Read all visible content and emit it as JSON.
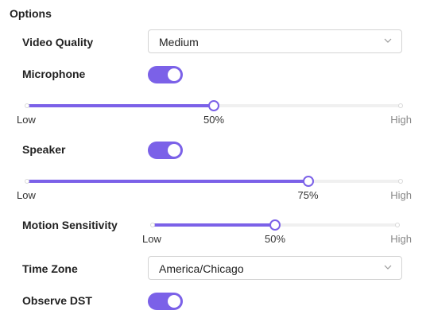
{
  "section": {
    "title": "Options"
  },
  "video_quality": {
    "label": "Video Quality",
    "value": "Medium"
  },
  "microphone": {
    "label": "Microphone",
    "enabled": true,
    "slider": {
      "value": 50,
      "min_label": "Low",
      "max_label": "High",
      "value_label": "50%"
    }
  },
  "speaker": {
    "label": "Speaker",
    "enabled": true,
    "slider": {
      "value": 75,
      "min_label": "Low",
      "max_label": "High",
      "value_label": "75%"
    }
  },
  "motion_sensitivity": {
    "label": "Motion Sensitivity",
    "slider": {
      "value": 50,
      "min_label": "Low",
      "max_label": "High",
      "value_label": "50%"
    }
  },
  "time_zone": {
    "label": "Time Zone",
    "value": "America/Chicago"
  },
  "observe_dst": {
    "label": "Observe DST",
    "enabled": true
  },
  "colors": {
    "accent": "#7b61e8",
    "track": "#f0f0f0",
    "border": "#d4d4d4"
  }
}
